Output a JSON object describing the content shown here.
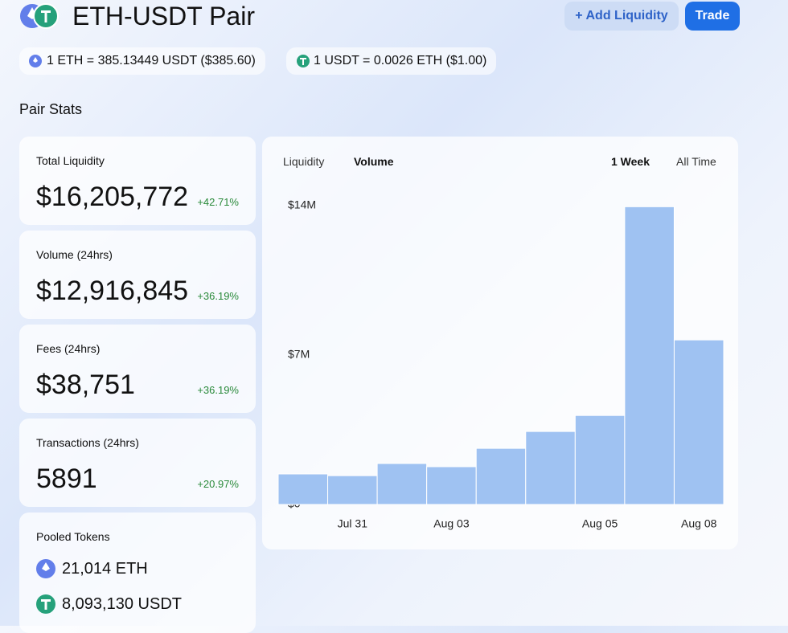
{
  "header": {
    "title": "ETH-USDT Pair",
    "add_button": "+ Add Liquidity",
    "trade_button": "Trade"
  },
  "prices": [
    "1 ETH = 385.13449 USDT ($385.60)",
    "1 USDT = 0.0026 ETH ($1.00)"
  ],
  "section_title": "Pair Stats",
  "stats": [
    {
      "label": "Total Liquidity",
      "value": "$16,205,772",
      "change": "+42.71%"
    },
    {
      "label": "Volume (24hrs)",
      "value": "$12,916,845",
      "change": "+36.19%"
    },
    {
      "label": "Fees (24hrs)",
      "value": "$38,751",
      "change": "+36.19%"
    },
    {
      "label": "Transactions (24hrs)",
      "value": "5891",
      "change": "+20.97%"
    }
  ],
  "pooled": {
    "label": "Pooled Tokens",
    "tokens": [
      "21,014 ETH",
      "8,093,130 USDT"
    ]
  },
  "chart_tabs": {
    "metrics": [
      "Liquidity",
      "Volume"
    ],
    "ranges": [
      "1 Week",
      "All Time"
    ]
  },
  "chart_data": {
    "type": "bar",
    "color": "#9fc2f2",
    "categories": [
      null,
      "Jul 31",
      null,
      "Aug 03",
      null,
      null,
      "Aug 05",
      null,
      "Aug 08"
    ],
    "values": [
      1430000,
      1350000,
      1920000,
      1770000,
      2630000,
      3420000,
      4170000,
      13950000,
      7710000
    ],
    "ylim": [
      0,
      14000000
    ],
    "yticks": [
      {
        "value": 0,
        "label": "$0"
      },
      {
        "value": 7000000,
        "label": "$7M"
      },
      {
        "value": 14000000,
        "label": "$14M"
      }
    ]
  }
}
